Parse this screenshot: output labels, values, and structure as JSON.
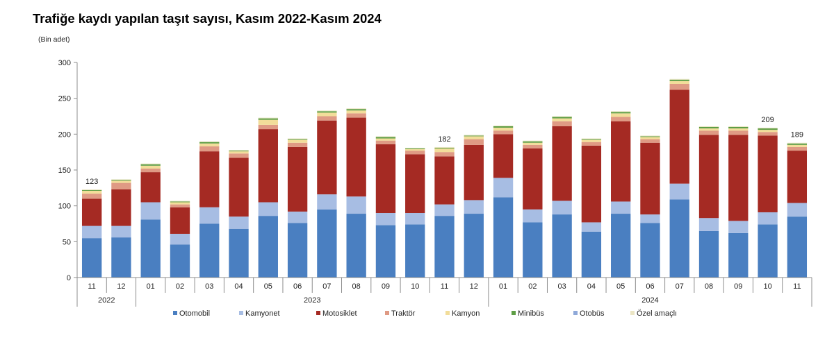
{
  "title": "Trafiğe kaydı yapılan taşıt sayısı, Kasım 2022-Kasım 2024",
  "unit": "(Bin adet)",
  "chart_data": {
    "type": "bar",
    "stacked": true,
    "title": "Trafiğe kaydı yapılan taşıt sayısı, Kasım 2022-Kasım 2024",
    "ylabel": "(Bin adet)",
    "ylim": [
      0,
      300
    ],
    "yticks": [
      0,
      50,
      100,
      150,
      200,
      250,
      300
    ],
    "categories": [
      "11",
      "12",
      "01",
      "02",
      "03",
      "04",
      "05",
      "06",
      "07",
      "08",
      "09",
      "10",
      "11",
      "12",
      "01",
      "02",
      "03",
      "04",
      "05",
      "06",
      "07",
      "08",
      "09",
      "10",
      "11"
    ],
    "year_groups": [
      {
        "label": "2022",
        "count": 2
      },
      {
        "label": "2023",
        "count": 12
      },
      {
        "label": "2024",
        "count": 11
      }
    ],
    "series": [
      {
        "name": "Otomobil",
        "color": "#4a7fc1",
        "values": [
          55,
          56,
          81,
          46,
          75,
          68,
          86,
          76,
          95,
          89,
          73,
          74,
          86,
          89,
          112,
          77,
          88,
          64,
          89,
          76,
          109,
          65,
          62,
          74,
          85
        ]
      },
      {
        "name": "Kamyonet",
        "color": "#a7bde3",
        "values": [
          17,
          16,
          24,
          15,
          23,
          17,
          19,
          16,
          21,
          24,
          17,
          16,
          16,
          19,
          27,
          18,
          19,
          13,
          17,
          12,
          22,
          18,
          17,
          17,
          19
        ]
      },
      {
        "name": "Motosiklet",
        "color": "#a52a23",
        "values": [
          38,
          51,
          42,
          37,
          78,
          82,
          102,
          90,
          103,
          110,
          96,
          82,
          67,
          77,
          61,
          85,
          104,
          107,
          112,
          100,
          131,
          116,
          120,
          107,
          73
        ]
      },
      {
        "name": "Traktör",
        "color": "#df9a84",
        "values": [
          7,
          9,
          5,
          4,
          7,
          6,
          6,
          6,
          6,
          6,
          5,
          5,
          6,
          8,
          5,
          5,
          7,
          5,
          6,
          5,
          8,
          6,
          6,
          5,
          5
        ]
      },
      {
        "name": "Kamyon",
        "color": "#f2dd9a",
        "values": [
          4,
          3,
          4,
          3,
          4,
          3,
          7,
          4,
          5,
          4,
          3,
          2,
          5,
          4,
          4,
          3,
          4,
          3,
          5,
          3,
          4,
          3,
          3,
          3,
          3
        ]
      },
      {
        "name": "Minibüs",
        "color": "#5e9e45",
        "values": [
          1,
          1,
          2,
          1,
          2,
          1,
          2,
          1,
          2,
          2,
          2,
          1,
          1,
          1,
          2,
          2,
          2,
          1,
          2,
          1,
          2,
          2,
          2,
          2,
          2
        ]
      },
      {
        "name": "Otobüs",
        "color": "#8fa9d9",
        "values": [
          0,
          0,
          0,
          0,
          0,
          0,
          0,
          0,
          0,
          0,
          0,
          0,
          0,
          0,
          0,
          0,
          0,
          0,
          0,
          0,
          0,
          0,
          0,
          0,
          0
        ]
      },
      {
        "name": "Özel amaçlı",
        "color": "#ebe5c4",
        "values": [
          1,
          1,
          1,
          1,
          1,
          1,
          1,
          1,
          1,
          1,
          1,
          1,
          1,
          1,
          1,
          1,
          1,
          1,
          1,
          1,
          1,
          1,
          1,
          1,
          1
        ]
      }
    ],
    "data_labels": [
      {
        "index": 0,
        "text": "123"
      },
      {
        "index": 12,
        "text": "182"
      },
      {
        "index": 23,
        "text": "209"
      },
      {
        "index": 24,
        "text": "189"
      }
    ],
    "grid": false,
    "legend": "bottom"
  }
}
